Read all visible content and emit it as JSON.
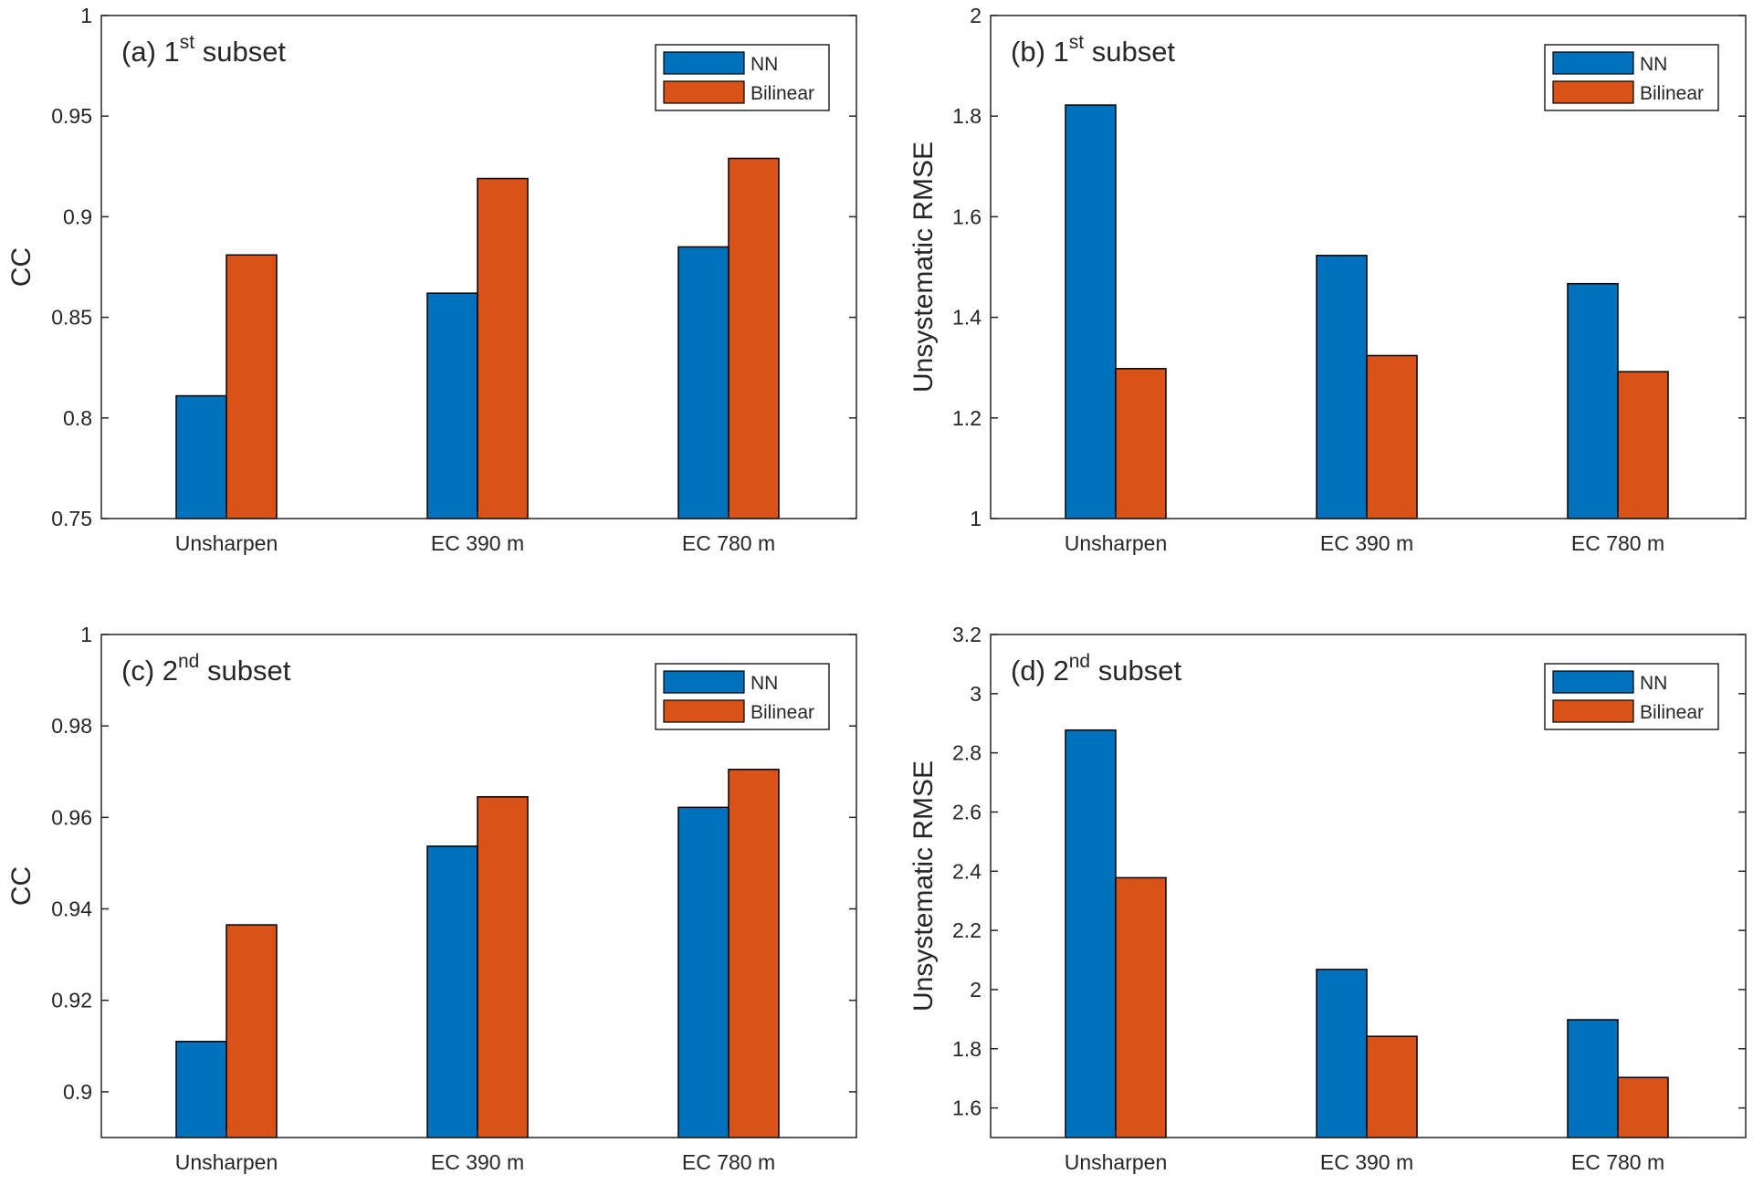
{
  "colors": {
    "nn": "#0072bd",
    "bilinear": "#d95319",
    "axis": "#262626",
    "background": "#ffffff"
  },
  "chart_data": [
    {
      "type": "bar",
      "title_prefix": "(a) 1",
      "title_sup": "st",
      "title_suffix": " subset",
      "xlabel": "",
      "ylabel": "CC",
      "ylim": [
        0.75,
        1
      ],
      "yticks": [
        0.75,
        0.8,
        0.85,
        0.9,
        0.95,
        1
      ],
      "ytick_labels": [
        "0.75",
        "0.8",
        "0.85",
        "0.9",
        "0.95",
        "1"
      ],
      "categories": [
        "Unsharpen",
        "EC 390 m",
        "EC 780 m"
      ],
      "legend": [
        "NN",
        "Bilinear"
      ],
      "legend_position": "top-right",
      "grid": false,
      "series": [
        {
          "name": "NN",
          "values": [
            0.811,
            0.862,
            0.885
          ]
        },
        {
          "name": "Bilinear",
          "values": [
            0.881,
            0.919,
            0.929
          ]
        }
      ]
    },
    {
      "type": "bar",
      "title_prefix": "(b) 1",
      "title_sup": "st",
      "title_suffix": " subset",
      "xlabel": "",
      "ylabel": "Unsystematic RMSE",
      "ylim": [
        1,
        2
      ],
      "yticks": [
        1,
        1.2,
        1.4,
        1.6,
        1.8,
        2
      ],
      "ytick_labels": [
        "1",
        "1.2",
        "1.4",
        "1.6",
        "1.8",
        "2"
      ],
      "categories": [
        "Unsharpen",
        "EC 390 m",
        "EC 780 m"
      ],
      "legend": [
        "NN",
        "Bilinear"
      ],
      "legend_position": "top-right",
      "grid": false,
      "series": [
        {
          "name": "NN",
          "values": [
            1.822,
            1.523,
            1.467
          ]
        },
        {
          "name": "Bilinear",
          "values": [
            1.298,
            1.324,
            1.292
          ]
        }
      ]
    },
    {
      "type": "bar",
      "title_prefix": "(c) 2",
      "title_sup": "nd",
      "title_suffix": " subset",
      "xlabel": "",
      "ylabel": "CC",
      "ylim": [
        0.89,
        1
      ],
      "yticks": [
        0.9,
        0.92,
        0.94,
        0.96,
        0.98,
        1
      ],
      "ytick_labels": [
        "0.9",
        "0.92",
        "0.94",
        "0.96",
        "0.98",
        "1"
      ],
      "categories": [
        "Unsharpen",
        "EC 390 m",
        "EC 780 m"
      ],
      "legend": [
        "NN",
        "Bilinear"
      ],
      "legend_position": "top-right",
      "grid": false,
      "series": [
        {
          "name": "NN",
          "values": [
            0.911,
            0.9537,
            0.9622
          ]
        },
        {
          "name": "Bilinear",
          "values": [
            0.9365,
            0.9645,
            0.9705
          ]
        }
      ]
    },
    {
      "type": "bar",
      "title_prefix": "(d) 2",
      "title_sup": "nd",
      "title_suffix": " subset",
      "xlabel": "",
      "ylabel": "Unsystematic RMSE",
      "ylim": [
        1.5,
        3.2
      ],
      "yticks": [
        1.6,
        1.8,
        2,
        2.2,
        2.4,
        2.6,
        2.8,
        3,
        3.2
      ],
      "ytick_labels": [
        "1.6",
        "1.8",
        "2",
        "2.2",
        "2.4",
        "2.6",
        "2.8",
        "3",
        "3.2"
      ],
      "categories": [
        "Unsharpen",
        "EC 390 m",
        "EC 780 m"
      ],
      "legend": [
        "NN",
        "Bilinear"
      ],
      "legend_position": "top-right",
      "grid": false,
      "series": [
        {
          "name": "NN",
          "values": [
            2.877,
            2.068,
            1.898
          ]
        },
        {
          "name": "Bilinear",
          "values": [
            2.378,
            1.842,
            1.703
          ]
        }
      ]
    }
  ]
}
